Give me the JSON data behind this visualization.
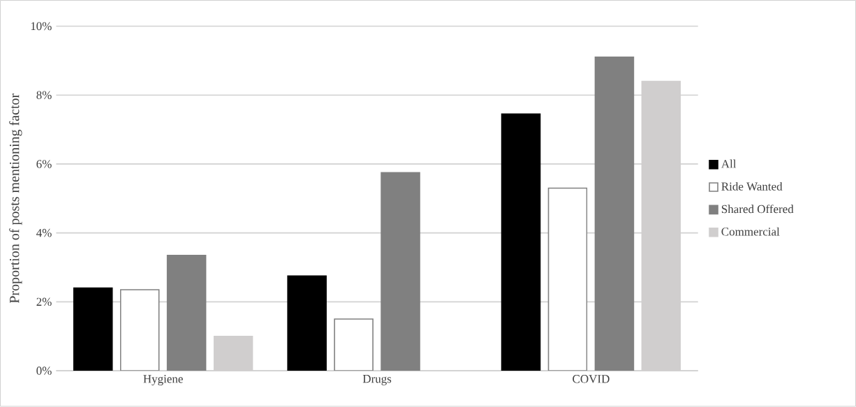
{
  "chart_data": {
    "type": "bar",
    "ylabel": "Proportion of posts mentioning factor",
    "categories": [
      "Hygiene",
      "Drugs",
      "COVID"
    ],
    "series": [
      {
        "name": "All",
        "color": "#000000",
        "values": [
          2.4,
          2.75,
          7.45
        ]
      },
      {
        "name": "Ride Wanted",
        "color": "#ffffff",
        "values": [
          2.35,
          1.5,
          5.3
        ]
      },
      {
        "name": "Shared Offered",
        "color": "#808080",
        "values": [
          3.35,
          5.75,
          9.1
        ]
      },
      {
        "name": "Commercial",
        "color": "#d0cece",
        "values": [
          1.0,
          null,
          8.4
        ]
      }
    ],
    "ylim": [
      0,
      10
    ],
    "yticks": [
      {
        "value": 0,
        "label": "0%"
      },
      {
        "value": 2,
        "label": "2%"
      },
      {
        "value": 4,
        "label": "4%"
      },
      {
        "value": 6,
        "label": "6%"
      },
      {
        "value": 8,
        "label": "8%"
      },
      {
        "value": 10,
        "label": "10%"
      }
    ],
    "grid": "y",
    "legend": "right"
  }
}
